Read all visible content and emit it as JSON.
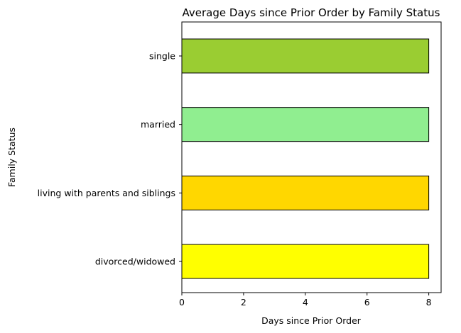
{
  "chart_data": {
    "type": "bar",
    "orientation": "horizontal",
    "title": "Average Days since Prior Order by Family Status",
    "xlabel": "Days since Prior Order",
    "ylabel": "Family Status",
    "categories": [
      "divorced/widowed",
      "living with parents and siblings",
      "married",
      "single"
    ],
    "values": [
      8.0,
      8.0,
      8.0,
      8.0
    ],
    "bar_colors": [
      "#ffff00",
      "#ffd700",
      "#90ee90",
      "#9acd32"
    ],
    "bar_edge_color": "#000000",
    "xlim": [
      0,
      8.4
    ],
    "xticks": [
      0,
      2,
      4,
      6,
      8
    ],
    "xtick_labels": [
      "0",
      "2",
      "4",
      "6",
      "8"
    ],
    "grid": false,
    "legend": "none"
  }
}
